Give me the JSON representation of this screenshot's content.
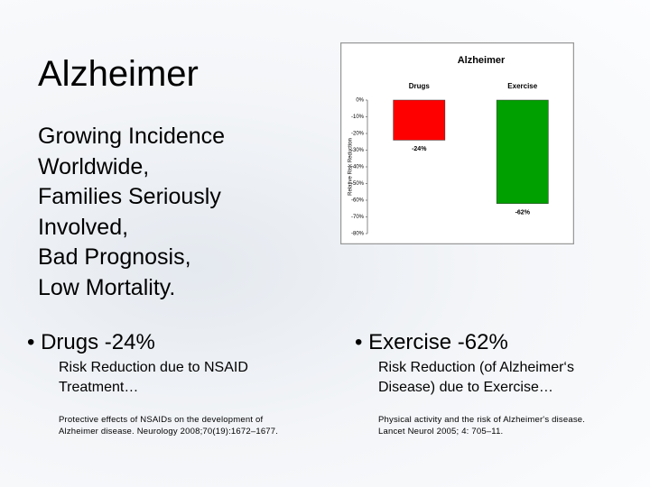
{
  "slide": {
    "title": "Alzheimer",
    "body": [
      "Growing Incidence",
      "Worldwide,",
      "Families Seriously",
      "Involved,",
      "Bad Prognosis,",
      "Low Mortality."
    ],
    "left": {
      "bullet": "Drugs -24%",
      "detail": [
        "Risk Reduction due to NSAID",
        "Treatment…"
      ],
      "reference": [
        "Protective effects of NSAIDs on the development of",
        "Alzheimer disease. Neurology 2008;70(19):1672–1677."
      ]
    },
    "right": {
      "bullet": "Exercise -62%",
      "detail": [
        "Risk Reduction (of Alzheimer‘s",
        "Disease) due to Exercise…"
      ],
      "reference": [
        "Physical activity and the risk of Alzheimer's disease.",
        "Lancet Neurol 2005; 4: 705–11."
      ]
    }
  },
  "chart_data": {
    "type": "bar",
    "title": "Alzheimer",
    "y_label": "Relative Risk Reduction",
    "categories": [
      "Drugs",
      "Exercise"
    ],
    "series": [
      {
        "name": "Drugs",
        "color": "#ff0000",
        "values": [
          -24,
          null
        ],
        "value_labels": [
          "-24%",
          null
        ]
      },
      {
        "name": "Exercise",
        "color": "#00a000",
        "values": [
          null,
          -62
        ],
        "value_labels": [
          null,
          "-62%"
        ]
      }
    ],
    "ylim": [
      -80,
      0
    ],
    "yticks": [
      {
        "value": 0,
        "label": "0%"
      },
      {
        "value": -10,
        "label": "-10%"
      },
      {
        "value": -20,
        "label": "-20%"
      },
      {
        "value": -30,
        "label": "-30%"
      },
      {
        "value": -40,
        "label": "-40%"
      },
      {
        "value": -50,
        "label": "-50%"
      },
      {
        "value": -60,
        "label": "-60%"
      },
      {
        "value": -70,
        "label": "-70%"
      },
      {
        "value": -80,
        "label": "-80%"
      }
    ]
  }
}
